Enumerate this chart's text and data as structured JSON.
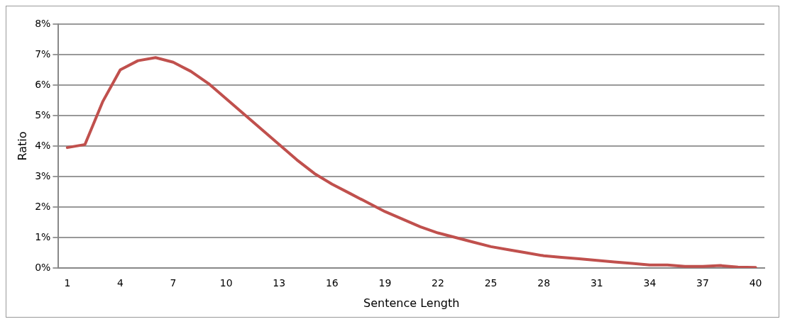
{
  "chart_data": {
    "type": "line",
    "xlabel": "Sentence Length",
    "ylabel": "Ratio",
    "categories": [
      "1",
      null,
      null,
      "4",
      null,
      null,
      "7",
      null,
      null,
      "10",
      null,
      null,
      "13",
      null,
      null,
      "16",
      null,
      null,
      "19",
      null,
      null,
      "22",
      null,
      null,
      "25",
      null,
      null,
      "28",
      null,
      null,
      "31",
      null,
      null,
      "34",
      null,
      null,
      "37",
      null,
      null,
      "40"
    ],
    "series": [
      {
        "color": "#c0504d",
        "values": [
          3.95,
          4.05,
          5.45,
          6.5,
          6.8,
          6.9,
          6.75,
          6.45,
          6.05,
          5.55,
          5.05,
          4.55,
          4.05,
          3.55,
          3.1,
          2.75,
          2.45,
          2.15,
          1.85,
          1.6,
          1.35,
          1.15,
          1.0,
          0.85,
          0.7,
          0.6,
          0.5,
          0.4,
          0.35,
          0.3,
          0.25,
          0.2,
          0.15,
          0.1,
          0.1,
          0.05,
          0.05,
          0.08,
          0.03,
          0.02
        ]
      }
    ],
    "ylim": [
      0,
      8
    ],
    "yticks": [
      {
        "value": 0,
        "label": "0%"
      },
      {
        "value": 1,
        "label": "1%"
      },
      {
        "value": 2,
        "label": "2%"
      },
      {
        "value": 3,
        "label": "3%"
      },
      {
        "value": 4,
        "label": "4%"
      },
      {
        "value": 5,
        "label": "5%"
      },
      {
        "value": 6,
        "label": "6%"
      },
      {
        "value": 7,
        "label": "7%"
      },
      {
        "value": 8,
        "label": "8%"
      }
    ],
    "grid": "y",
    "legend": false,
    "marker": "none",
    "line_style": "solid"
  }
}
